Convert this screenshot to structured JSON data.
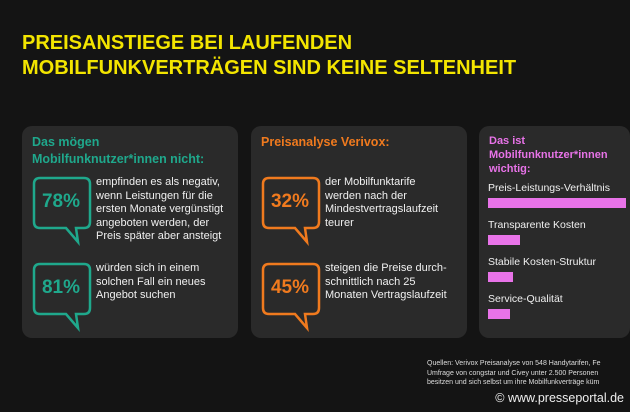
{
  "title": [
    "Preisanstiege bei laufenden",
    "Mobilfunkverträgen sind keine Seltenheit"
  ],
  "colors": {
    "title": "#f3e500",
    "teal": "#1fa88c",
    "orange": "#f07a1e",
    "pink": "#e873e8",
    "background": "#141414",
    "panel": "#2a2a2a"
  },
  "panel1": {
    "heading": "Das mögen Mobilfunknutzer*innen nicht:",
    "stats": [
      {
        "value": "78%",
        "text": "empfinden es als negativ,\nwenn Leistungen für die\nersten Monate vergünstigt\nangeboten werden, der\nPreis später aber ansteigt"
      },
      {
        "value": "81%",
        "text": "würden sich in einem\nsolchen Fall ein neues\nAngebot suchen"
      }
    ]
  },
  "panel2": {
    "heading": "Preisanalyse Verivox:",
    "stats": [
      {
        "value": "32%",
        "text": "der Mobilfunktarife\nwerden nach der\nMindestvertragslaufzeit\nteurer"
      },
      {
        "value": "45%",
        "text": "steigen die Preise durch-\nschnittlich nach 25\nMonaten Vertragslaufzeit"
      }
    ]
  },
  "panel3": {
    "heading": "Das ist Mobilfunknutzer*innen wichtig:",
    "items": [
      {
        "label": "Preis-Leistungs-Verhältnis",
        "fill": 1.0
      },
      {
        "label": "Transparente Kosten",
        "fill": 0.23
      },
      {
        "label": "Stabile Kosten-Struktur",
        "fill": 0.18
      },
      {
        "label": "Service-Qualität",
        "fill": 0.16
      }
    ]
  },
  "source": "Quellen: Verivox Preisanalyse von 548 Handytarifen, Fe\nUmfrage von congstar und Civey unter 2.500 Personen\nbesitzen und sich selbst um ihre Mobilfunkverträge küm",
  "watermark": "© www.presseportal.de"
}
